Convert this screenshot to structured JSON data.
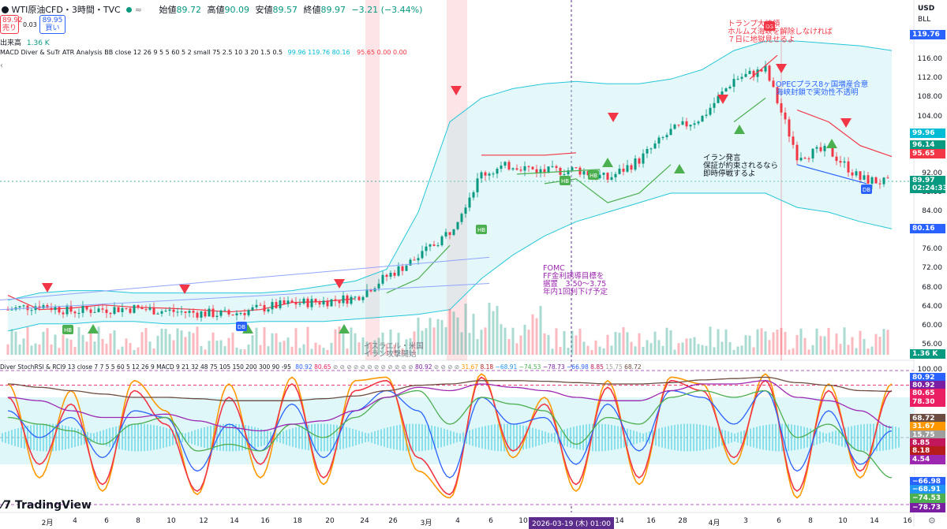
{
  "header": {
    "title": "WTI原油CFD・3時間・TVC",
    "ohlc_open_label": "始値",
    "ohlc_open": "89.72",
    "ohlc_high_label": "高値",
    "ohlc_high": "90.09",
    "ohlc_low_label": "安値",
    "ohlc_low": "89.57",
    "ohlc_close_label": "終値",
    "ohlc_close": "89.97",
    "change": "−3.21 (−3.44%)",
    "sell_price": "89.92",
    "sell_label": "売り",
    "buy_price": "89.95",
    "buy_label": "買い",
    "spread": "0.03",
    "volume_label": "出来高",
    "volume": "1.36 K",
    "indicator_line": "MACD Diver & SuTr ATR Analysis BB close 12 26 9 5 5 60 5 2 small 75 2.5 10 3 20 1.5 0.5",
    "indicator_values": [
      "99.96",
      "119.76",
      "80.16"
    ],
    "indicator_values2": [
      "95.65",
      "0.00",
      "0.00"
    ],
    "lower_indicator_line": "Diver StochRSI & RCI9 13 close 7 7 5 5 60 5 12 26 9 MACD 9 21 32 48 75 105 150 200 300 90 -95",
    "lower_values_a": [
      "80.92",
      "80.65"
    ],
    "lower_values_b": [
      "80.92"
    ],
    "lower_values_c": [
      "31.67",
      "8.18",
      "−74.53",
      "−78.73",
      "−66.98",
      "8.85",
      "15.75",
      "68.72"
    ],
    "lower_values_d": [
      "−68.91"
    ],
    "currency": "USD",
    "unit": "BLL",
    "logo_text": "TradingView"
  },
  "price_axis": {
    "ticks": [
      "116.00",
      "112.00",
      "108.00",
      "104.00",
      "100.00",
      "96.00",
      "92.00",
      "88.00",
      "84.00",
      "80.00",
      "76.00",
      "72.00",
      "68.00",
      "64.00",
      "60.00",
      "56.00"
    ],
    "tags": [
      {
        "label": "119.76",
        "color": "#2962ff"
      },
      {
        "label": "99.96",
        "color": "#00bcd4"
      },
      {
        "label": "96.14",
        "color": "#089981"
      },
      {
        "label": "95.65",
        "color": "#f23645"
      },
      {
        "label": "89.97",
        "color": "#089981"
      },
      {
        "label": "02:24:33",
        "color": "#089981"
      },
      {
        "label": "80.16",
        "color": "#2962ff"
      },
      {
        "label": "1.36 K",
        "color": "#089981"
      }
    ]
  },
  "osc_axis": {
    "ticks": [
      "100.00",
      "78.30",
      "−100.00"
    ],
    "tags": [
      {
        "label": "80.92",
        "color": "#2962ff"
      },
      {
        "label": "80.92",
        "color": "#7b1fa2"
      },
      {
        "label": "80.65",
        "color": "#e91e63"
      },
      {
        "label": "78.30",
        "color": "#e91e63"
      },
      {
        "label": "68.72",
        "color": "#6d4c41"
      },
      {
        "label": "31.67",
        "color": "#ff9800"
      },
      {
        "label": "15.75",
        "color": "#9e9e9e"
      },
      {
        "label": "8.85",
        "color": "#c2185b"
      },
      {
        "label": "8.18",
        "color": "#b71c1c"
      },
      {
        "label": "4.54",
        "color": "#9c27b0"
      },
      {
        "label": "−66.98",
        "color": "#2962ff"
      },
      {
        "label": "−68.91",
        "color": "#2196f3"
      },
      {
        "label": "−74.53",
        "color": "#4caf50"
      },
      {
        "label": "−78.73",
        "color": "#7b1fa2"
      }
    ]
  },
  "time_axis": {
    "ticks": [
      "2月",
      "4",
      "6",
      "8",
      "10",
      "12",
      "14",
      "16",
      "18",
      "20",
      "24",
      "26",
      "3月",
      "4",
      "6",
      "10",
      "12",
      "14",
      "16",
      "24",
      "26",
      "28",
      "4月",
      "3",
      "6",
      "8",
      "10",
      "14",
      "16",
      "18"
    ],
    "crosshair_label": "2026-03-19 (木)  01:00"
  },
  "annotations": {
    "trump": "トランプ大統領\nホルムズ海峡を解除しなければ\n７日に地獄見せるよ",
    "opec": "OPECプラス8ヶ国増産合意\n海峡封鎖で実効性不透明",
    "iran": "イラン発言\n保証が約束されるなら\n即時停戦するよ",
    "fomc": "FOMC\nFF金利誘導目標を\n据置　3.50〜3.75\n年内1回利下げ予定",
    "israel": "イスラエル・米国\nイラン攻撃開始"
  },
  "markers": [
    "HB",
    "HB",
    "DB",
    "HB",
    "HB",
    "HB",
    "DB",
    "DS"
  ],
  "chart_data": [
    {
      "type": "line",
      "title": "WTI原油CFD・3時間・TVC",
      "ylabel": "USD/BLL",
      "ylim": [
        55,
        120
      ],
      "x": [
        "2月",
        "4",
        "6",
        "8",
        "10",
        "12",
        "14",
        "16",
        "18",
        "20",
        "24",
        "26",
        "3月",
        "4",
        "6",
        "10",
        "12",
        "14",
        "16",
        "24",
        "26",
        "28",
        "4月",
        "3",
        "6",
        "8",
        "10",
        "14",
        "16"
      ],
      "series": [
        {
          "name": "close",
          "values": [
            63.5,
            64.5,
            63.2,
            63.6,
            63.8,
            63.2,
            62.8,
            62.5,
            63.8,
            64.8,
            65.2,
            66.0,
            70.5,
            74.5,
            80.0,
            92.0,
            94.0,
            92.5,
            93.0,
            91.0,
            95.0,
            101.0,
            104.0,
            112.0,
            114.0,
            96.0,
            97.0,
            91.0,
            90.0
          ]
        },
        {
          "name": "BB upper",
          "values": [
            65.5,
            67.0,
            67.5,
            67.5,
            67.0,
            67.0,
            67.0,
            67.0,
            67.0,
            67.5,
            68.5,
            69.5,
            72.0,
            84.0,
            103.0,
            108.0,
            110.0,
            111.0,
            111.5,
            111.0,
            111.0,
            112.0,
            114.0,
            118.0,
            120.0,
            120.0,
            119.5,
            119.0,
            118.0
          ]
        },
        {
          "name": "BB lower",
          "values": [
            59.0,
            60.5,
            60.5,
            61.0,
            61.0,
            60.5,
            60.5,
            60.5,
            61.0,
            61.0,
            61.0,
            61.5,
            62.0,
            62.5,
            63.5,
            70.0,
            75.0,
            79.0,
            82.0,
            84.0,
            86.0,
            88.0,
            88.0,
            88.0,
            88.0,
            85.0,
            84.0,
            82.0,
            80.5
          ]
        },
        {
          "name": "Supertrend down",
          "values": [
            66.5,
            63.5,
            63.8,
            64.5,
            64.0,
            63.8,
            63.5,
            63.0,
            63.5,
            65.0,
            65.2,
            65.8,
            null,
            null,
            null,
            96.0,
            96.0,
            96.0,
            96.5,
            null,
            null,
            null,
            106.0,
            null,
            null,
            105.5,
            103.0,
            98.0,
            95.7
          ]
        },
        {
          "name": "Supertrend up",
          "values": [
            null,
            null,
            null,
            null,
            null,
            null,
            null,
            null,
            null,
            null,
            null,
            null,
            67.0,
            70.0,
            77.0,
            null,
            null,
            90.0,
            91.0,
            86.0,
            88.0,
            94.0,
            null,
            103.0,
            108.0,
            null,
            null,
            null,
            null
          ]
        }
      ],
      "events": [
        "イスラエル・米国 イラン攻撃開始",
        "FOMC",
        "イラン発言",
        "トランプ大統領",
        "OPECプラス8ヶ国増産合意"
      ]
    },
    {
      "type": "line",
      "title": "Diver StochRSI & RCI",
      "ylim": [
        -100,
        100
      ],
      "x": [
        "2月",
        "4",
        "6",
        "8",
        "10",
        "12",
        "14",
        "16",
        "18",
        "20",
        "24",
        "26",
        "3月",
        "4",
        "6",
        "10",
        "12",
        "14",
        "16",
        "24",
        "26",
        "28",
        "4月",
        "3",
        "6",
        "8",
        "10",
        "14",
        "16"
      ],
      "series": [
        {
          "name": "StochRSI K",
          "values": [
            80,
            -60,
            70,
            -80,
            85,
            40,
            -85,
            80,
            -60,
            90,
            -70,
            85,
            90,
            -50,
            -90,
            95,
            -30,
            60,
            -80,
            85,
            -70,
            90,
            80,
            -40,
            95,
            -90,
            80,
            -60,
            80
          ]
        },
        {
          "name": "RCI 9",
          "values": [
            60,
            -40,
            50,
            -70,
            70,
            20,
            -80,
            60,
            -40,
            80,
            -60,
            70,
            85,
            -30,
            -85,
            90,
            -20,
            50,
            -70,
            75,
            -60,
            85,
            70,
            -30,
            85,
            -80,
            70,
            -50,
            70
          ]
        },
        {
          "name": "RCI 13",
          "values": [
            40,
            0,
            30,
            -30,
            40,
            30,
            -50,
            20,
            -20,
            50,
            -30,
            40,
            70,
            40,
            -60,
            60,
            20,
            30,
            -40,
            50,
            -20,
            70,
            60,
            20,
            70,
            -50,
            40,
            -40,
            10
          ]
        },
        {
          "name": "RCI 21",
          "values": [
            30,
            20,
            10,
            -10,
            20,
            30,
            -20,
            -10,
            -20,
            20,
            0,
            30,
            60,
            70,
            20,
            60,
            50,
            40,
            -10,
            30,
            20,
            60,
            70,
            60,
            70,
            0,
            20,
            -20,
            -60
          ]
        },
        {
          "name": "RCI 48",
          "values": [
            60,
            55,
            40,
            30,
            30,
            35,
            25,
            15,
            10,
            20,
            25,
            40,
            60,
            75,
            70,
            80,
            75,
            70,
            60,
            55,
            55,
            70,
            80,
            80,
            85,
            60,
            55,
            40,
            15
          ]
        },
        {
          "name": "RCI 75",
          "values": [
            80,
            75,
            70,
            65,
            60,
            60,
            58,
            55,
            55,
            55,
            58,
            62,
            70,
            78,
            80,
            85,
            85,
            84,
            82,
            80,
            80,
            82,
            86,
            88,
            90,
            82,
            78,
            70,
            69
          ]
        }
      ]
    }
  ]
}
